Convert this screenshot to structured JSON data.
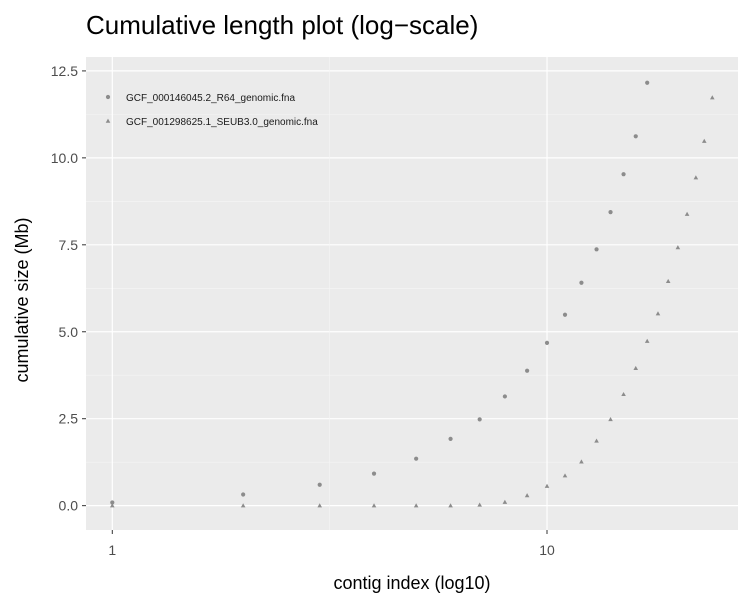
{
  "chart_data": {
    "type": "scatter",
    "title": "Cumulative length plot (log−scale)",
    "xlabel": "contig index (log10)",
    "ylabel": "cumulative size (Mb)",
    "x_scale": "log10",
    "xlim": [
      0.87,
      27.5
    ],
    "ylim": [
      -0.7,
      12.9
    ],
    "x_ticks": [
      {
        "value": 1,
        "label": "1"
      },
      {
        "value": 10,
        "label": "10"
      }
    ],
    "y_ticks": [
      {
        "value": 0.0,
        "label": "0.0"
      },
      {
        "value": 2.5,
        "label": "2.5"
      },
      {
        "value": 5.0,
        "label": "5.0"
      },
      {
        "value": 7.5,
        "label": "7.5"
      },
      {
        "value": 10.0,
        "label": "10.0"
      },
      {
        "value": 12.5,
        "label": "12.5"
      }
    ],
    "grid": true,
    "legend_position": "top-left",
    "colors": {
      "panel_background": "#ebebeb",
      "grid_major": "#ffffff",
      "grid_minor": "#f5f5f5",
      "points": "#8c8c8c",
      "text": "#000000",
      "tick_text": "#4d4d4d"
    },
    "series": [
      {
        "name": "GCF_000146045.2_R64_genomic.fna",
        "shape": "circle",
        "x": [
          1,
          2,
          3,
          4,
          5,
          6,
          7,
          8,
          9,
          10,
          11,
          12,
          13,
          14,
          15,
          16,
          17
        ],
        "y": [
          0.09,
          0.32,
          0.6,
          0.92,
          1.35,
          1.92,
          2.48,
          3.14,
          3.88,
          4.68,
          5.49,
          6.41,
          7.37,
          8.44,
          9.53,
          10.62,
          12.16
        ]
      },
      {
        "name": "GCF_001298625.1_SEUB3.0_genomic.fna",
        "shape": "triangle",
        "x": [
          1,
          2,
          3,
          4,
          5,
          6,
          7,
          8,
          9,
          10,
          11,
          12,
          13,
          14,
          15,
          16,
          17,
          18,
          19,
          20,
          21,
          22,
          23,
          24
        ],
        "y": [
          0.0,
          0.0,
          0.0,
          0.0,
          0.0,
          0.0,
          0.02,
          0.1,
          0.29,
          0.56,
          0.86,
          1.26,
          1.86,
          2.48,
          3.2,
          3.95,
          4.73,
          5.52,
          6.45,
          7.42,
          8.38,
          9.43,
          10.48,
          11.73
        ]
      }
    ]
  }
}
